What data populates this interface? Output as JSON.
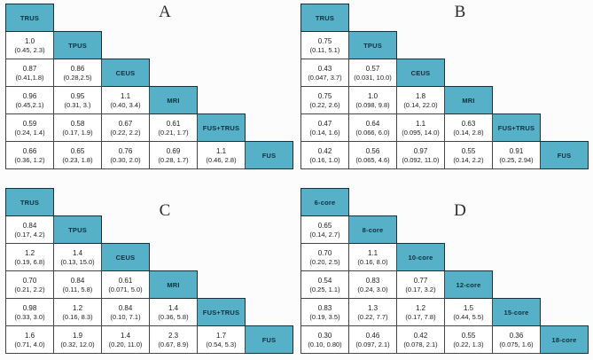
{
  "colors": {
    "diagonal_fill": "#55b0c8",
    "diagonal_border": "#16323c",
    "diagonal_text": "#10323e",
    "cell_border": "#454545",
    "cell_background": "#ffffff",
    "cell_text": "#1c1c1c",
    "page_background": "#fcfcfc",
    "panel_letter_color": "#2d2d2d"
  },
  "chart_data": [
    {
      "type": "table",
      "title": "A",
      "diagonal": [
        "TRUS",
        "TPUS",
        "CEUS",
        "MRI",
        "FUS+TRUS",
        "FUS"
      ],
      "rows": [
        [
          [
            "1.0",
            "(0.45, 2.3)"
          ]
        ],
        [
          [
            "0.87",
            "(0.41,1.8)"
          ],
          [
            "0.86",
            "(0.28,2.5)"
          ]
        ],
        [
          [
            "0.96",
            "(0.45,2.1)"
          ],
          [
            "0.95",
            "(0.31, 3.)"
          ],
          [
            "1.1",
            "(0.40, 3.4)"
          ]
        ],
        [
          [
            "0.59",
            "(0.24, 1.4)"
          ],
          [
            "0.58",
            "(0.17, 1.9)"
          ],
          [
            "0.67",
            "(0.22, 2.2)"
          ],
          [
            "0.61",
            "(0.21, 1.7)"
          ]
        ],
        [
          [
            "0.66",
            "(0.36, 1.2)"
          ],
          [
            "0.65",
            "(0.23, 1.8)"
          ],
          [
            "0.76",
            "(0.30, 2.0)"
          ],
          [
            "0.69",
            "(0.28, 1.7)"
          ],
          [
            "1.1",
            "(0.46, 2.8)"
          ]
        ]
      ]
    },
    {
      "type": "table",
      "title": "B",
      "diagonal": [
        "TRUS",
        "TPUS",
        "CEUS",
        "MRI",
        "FUS+TRUS",
        "FUS"
      ],
      "rows": [
        [
          [
            "0.75",
            "(0.11, 5.1)"
          ]
        ],
        [
          [
            "0.43",
            "(0.047, 3.7)"
          ],
          [
            "0.57",
            "(0.031, 10.0)"
          ]
        ],
        [
          [
            "0.75",
            "(0.22, 2.6)"
          ],
          [
            "1.0",
            "(0.098, 9.8)"
          ],
          [
            "1.8",
            "(0.14, 22.0)"
          ]
        ],
        [
          [
            "0.47",
            "(0.14, 1.6)"
          ],
          [
            "0.64",
            "(0.066, 6.0)"
          ],
          [
            "1.1",
            "(0.095, 14.0)"
          ],
          [
            "0.63",
            "(0.14, 2.8)"
          ]
        ],
        [
          [
            "0.42",
            "(0.16, 1.0)"
          ],
          [
            "0.56",
            "(0.065, 4.6)"
          ],
          [
            "0.97",
            "(0.092, 11.0)"
          ],
          [
            "0.55",
            "(0.14, 2.2)"
          ],
          [
            "0.91",
            "(0.25, 2.94)"
          ]
        ]
      ]
    },
    {
      "type": "table",
      "title": "C",
      "diagonal": [
        "TRUS",
        "TPUS",
        "CEUS",
        "MRI",
        "FUS+TRUS",
        "FUS"
      ],
      "rows": [
        [
          [
            "0.84",
            "(0.17, 4.2)"
          ]
        ],
        [
          [
            "1.2",
            "(0.19, 6.8)"
          ],
          [
            "1.4",
            "(0.13, 15.0)"
          ]
        ],
        [
          [
            "0.70",
            "(0.21, 2.2)"
          ],
          [
            "0.84",
            "(0.11, 5.8)"
          ],
          [
            "0.61",
            "(0.071, 5.0)"
          ]
        ],
        [
          [
            "0.98",
            "(0.33, 3.0)"
          ],
          [
            "1.2",
            "(0.16, 8.3)"
          ],
          [
            "0.84",
            "(0.10, 7.1)"
          ],
          [
            "1.4",
            "(0.36, 5.8)"
          ]
        ],
        [
          [
            "1.6",
            "(0.71, 4.0)"
          ],
          [
            "1.9",
            "(0.32, 12.0)"
          ],
          [
            "1.4",
            "(0.20, 11.0)"
          ],
          [
            "2.3",
            "(0.67, 8.9)"
          ],
          [
            "1.7",
            "(0.54, 5.3)"
          ]
        ]
      ]
    },
    {
      "type": "table",
      "title": "D",
      "diagonal": [
        "6-core",
        "8-core",
        "10-core",
        "12-core",
        "15-core",
        "18-core"
      ],
      "rows": [
        [
          [
            "0.65",
            "(0.14, 2.7)"
          ]
        ],
        [
          [
            "0.70",
            "(0.20, 2.5)"
          ],
          [
            "1.1",
            "(0.16, 8.0)"
          ]
        ],
        [
          [
            "0.54",
            "(0.25, 1.1)"
          ],
          [
            "0.83",
            "(0.24, 3.0)"
          ],
          [
            "0.77",
            "(0.17, 3.2)"
          ]
        ],
        [
          [
            "0.83",
            "(0.19, 3.5)"
          ],
          [
            "1.3",
            "(0.22, 7.7)"
          ],
          [
            "1.2",
            "(0.17, 7.8)"
          ],
          [
            "1.5",
            "(0.44, 5.5)"
          ]
        ],
        [
          [
            "0.30",
            "(0.10, 0.80)"
          ],
          [
            "0.46",
            "(0.097, 2.1)"
          ],
          [
            "0.42",
            "(0.078, 2.1)"
          ],
          [
            "0.55",
            "(0.22, 1.3)"
          ],
          [
            "0.36",
            "(0.075, 1.6)"
          ]
        ]
      ]
    }
  ]
}
